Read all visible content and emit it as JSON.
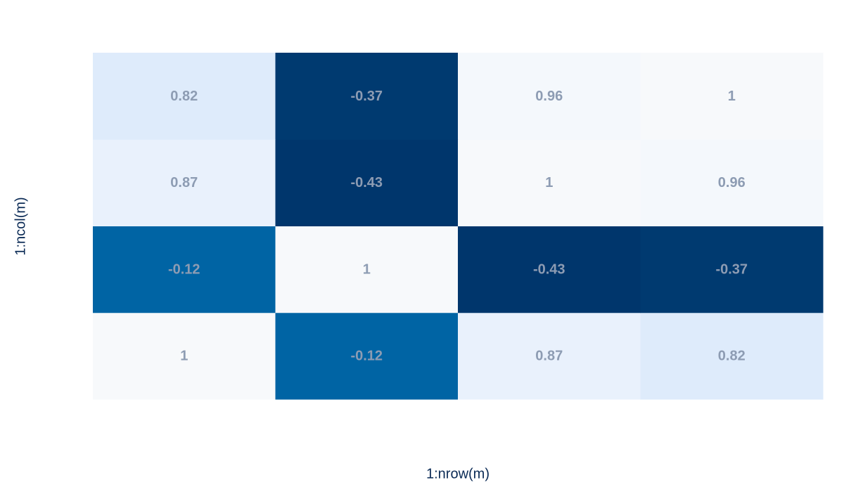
{
  "chart_data": {
    "type": "heatmap",
    "x_label": "1:nrow(m)",
    "y_label": "1:ncol(m)",
    "z": [
      [
        1,
        -0.12,
        0.87,
        0.82
      ],
      [
        -0.12,
        1,
        -0.43,
        -0.37
      ],
      [
        0.87,
        -0.43,
        1,
        0.96
      ],
      [
        0.82,
        -0.37,
        0.96,
        1
      ]
    ],
    "colors": [
      [
        "#f7f9fb",
        "#0064a4",
        "#e9f1fc",
        "#deebfb"
      ],
      [
        "#0064a4",
        "#f7f9fb",
        "#00366c",
        "#003a70"
      ],
      [
        "#e9f1fc",
        "#00366c",
        "#f7f9fb",
        "#f4f8fc"
      ],
      [
        "#deebfb",
        "#003a70",
        "#f4f8fc",
        "#f7f9fb"
      ]
    ],
    "text_color": "#8d9cb3"
  }
}
